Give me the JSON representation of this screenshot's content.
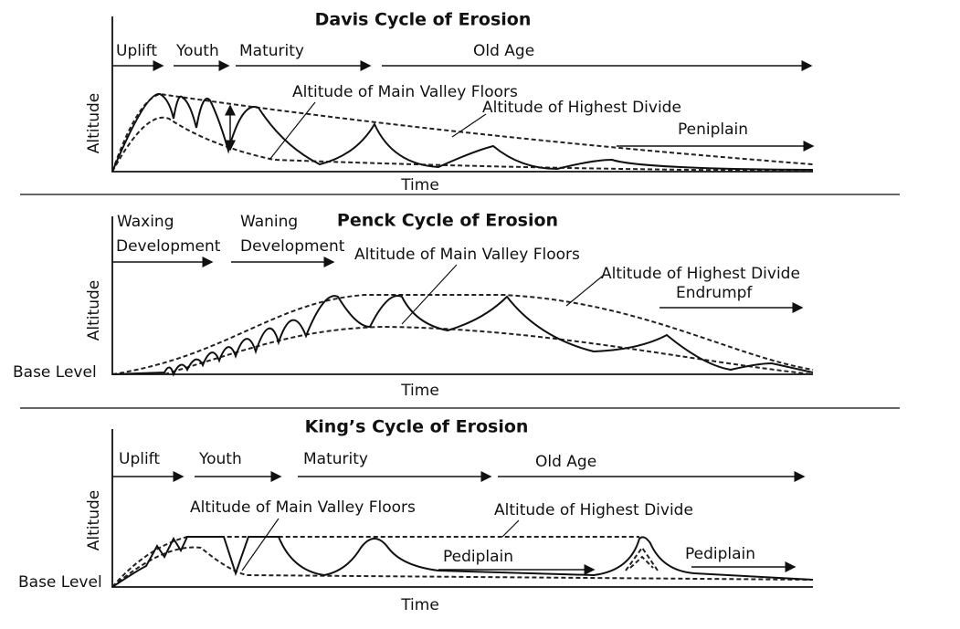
{
  "panels": [
    {
      "title": "Davis Cycle of Erosion",
      "y_label": "Altitude",
      "x_label": "Time",
      "stages": [
        "Uplift",
        "Youth",
        "Maturity",
        "Old Age"
      ],
      "annotations": [
        "Altitude of Main Valley Floors",
        "Altitude of Highest Divide",
        "Peniplain"
      ]
    },
    {
      "title": "Penck Cycle of Erosion",
      "y_label": "Altitude",
      "x_label": "Time",
      "base_label": "Base Level",
      "stages": [
        "Waxing",
        "Development",
        "Waning",
        "Development"
      ],
      "annotations": [
        "Altitude of Main Valley Floors",
        "Altitude of Highest Divide",
        "Endrumpf"
      ]
    },
    {
      "title": "King’s Cycle of Erosion",
      "y_label": "Altitude",
      "x_label": "Time",
      "base_label": "Base Level",
      "stages": [
        "Uplift",
        "Youth",
        "Maturity",
        "Old Age"
      ],
      "annotations": [
        "Altitude of Main Valley Floors",
        "Altitude of Highest Divide",
        "Pediplain",
        "Pediplain"
      ]
    }
  ]
}
